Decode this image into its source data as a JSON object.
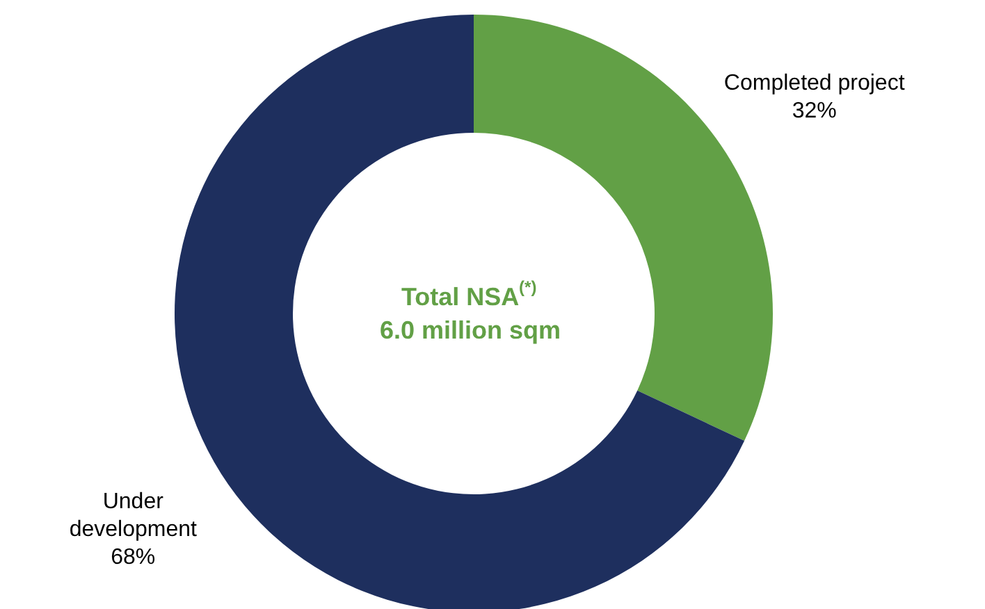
{
  "chart_data": {
    "type": "donut",
    "categories": [
      "Completed project",
      "Under development"
    ],
    "values": [
      32,
      68
    ],
    "colors": [
      "#62a046",
      "#1e2f5e"
    ],
    "annotations": [
      "Total NSA$^{(*)}$",
      "6.0  million sqm"
    ],
    "value_labels": [
      "32%",
      "68%"
    ]
  }
}
